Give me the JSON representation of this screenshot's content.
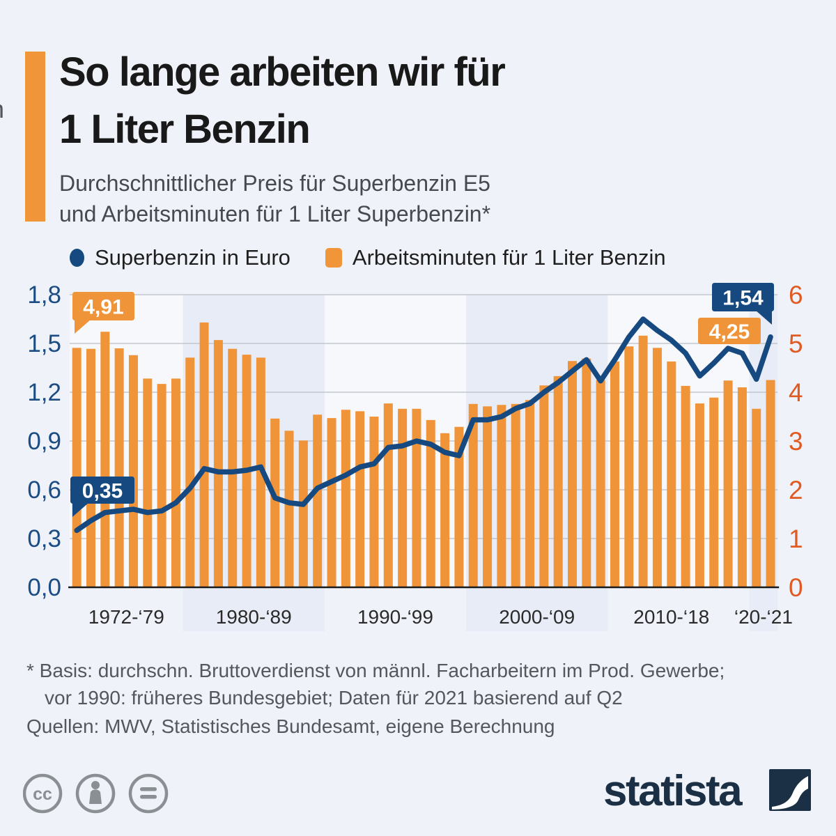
{
  "edge_artifact": "n",
  "header": {
    "title_line1": "So lange arbeiten wir für",
    "title_line2": "1 Liter Benzin",
    "subtitle_line1": "Durchschnittlicher Preis für Superbenzin E5",
    "subtitle_line2": "und Arbeitsminuten für 1 Liter Superbenzin*"
  },
  "legend": [
    {
      "label": "Superbenzin in Euro",
      "marker": "circle",
      "color": "#16497f"
    },
    {
      "label": "Arbeitsminuten für 1 Liter Benzin",
      "marker": "square",
      "color": "#f0953a"
    }
  ],
  "chart_data": {
    "type": "bar+line",
    "title": "Durchschnittlicher Preis für Superbenzin E5 und Arbeitsminuten für 1 Liter Superbenzin",
    "years": [
      1972,
      1973,
      1974,
      1975,
      1976,
      1977,
      1978,
      1979,
      1980,
      1981,
      1982,
      1983,
      1984,
      1985,
      1986,
      1987,
      1988,
      1989,
      1990,
      1991,
      1992,
      1993,
      1994,
      1995,
      1996,
      1997,
      1998,
      1999,
      2000,
      2001,
      2002,
      2003,
      2004,
      2005,
      2006,
      2007,
      2008,
      2009,
      2010,
      2011,
      2012,
      2013,
      2014,
      2015,
      2016,
      2017,
      2018,
      2019,
      2020,
      2021
    ],
    "series": [
      {
        "name": "Superbenzin in Euro",
        "type": "line",
        "axis": "left",
        "color": "#16497f",
        "values": [
          0.35,
          0.41,
          0.46,
          0.47,
          0.48,
          0.46,
          0.47,
          0.52,
          0.61,
          0.73,
          0.71,
          0.71,
          0.72,
          0.74,
          0.55,
          0.52,
          0.51,
          0.61,
          0.65,
          0.69,
          0.74,
          0.76,
          0.86,
          0.87,
          0.9,
          0.88,
          0.83,
          0.81,
          1.03,
          1.03,
          1.05,
          1.1,
          1.13,
          1.2,
          1.26,
          1.33,
          1.4,
          1.27,
          1.4,
          1.54,
          1.65,
          1.58,
          1.52,
          1.44,
          1.3,
          1.38,
          1.47,
          1.44,
          1.28,
          1.54
        ]
      },
      {
        "name": "Arbeitsminuten für 1 Liter Benzin",
        "type": "bar",
        "axis": "right",
        "color": "#f0943a",
        "values": [
          4.91,
          4.89,
          5.24,
          4.9,
          4.76,
          4.28,
          4.17,
          4.28,
          4.71,
          5.43,
          5.07,
          4.89,
          4.77,
          4.71,
          3.46,
          3.21,
          3.01,
          3.54,
          3.47,
          3.64,
          3.61,
          3.5,
          3.77,
          3.66,
          3.66,
          3.43,
          3.16,
          3.29,
          3.76,
          3.71,
          3.74,
          3.76,
          3.84,
          4.14,
          4.33,
          4.64,
          4.69,
          4.25,
          4.63,
          4.94,
          5.16,
          4.91,
          4.63,
          4.13,
          3.77,
          3.89,
          4.24,
          4.1,
          3.66,
          4.25
        ]
      }
    ],
    "left_axis": {
      "ticks": [
        "1,8",
        "1,5",
        "1,2",
        "0,9",
        "0,6",
        "0,3",
        "0,0"
      ],
      "range": [
        0,
        1.8
      ],
      "color": "#1b4c84"
    },
    "right_axis": {
      "ticks": [
        "6",
        "5",
        "4",
        "3",
        "2",
        "1",
        "0"
      ],
      "range": [
        0,
        6
      ],
      "color": "#e15a22"
    },
    "x_groups": [
      {
        "label": "1972-‘79",
        "from": 1972,
        "to": 1979,
        "band": false
      },
      {
        "label": "1980-‘89",
        "from": 1980,
        "to": 1989,
        "band": true
      },
      {
        "label": "1990-‘99",
        "from": 1990,
        "to": 1999,
        "band": false
      },
      {
        "label": "2000-‘09",
        "from": 2000,
        "to": 2009,
        "band": true
      },
      {
        "label": "2010-‘18",
        "from": 2010,
        "to": 2018,
        "band": false
      },
      {
        "label": "‘20-‘21",
        "from": 2020,
        "to": 2021,
        "band": true
      }
    ],
    "band_color": "#e8ecf6",
    "plot_bg": "#f6f8fb",
    "grid_color": "#b9bec6",
    "baseline_color": "#1a1a1a",
    "grid": true,
    "legend_position": "top",
    "callouts": [
      {
        "text": "4,91",
        "year": 1972,
        "series": "bar",
        "color": "#f0943a"
      },
      {
        "text": "0,35",
        "year": 1972,
        "series": "line",
        "color": "#16497f"
      },
      {
        "text": "1,54",
        "year": 2021,
        "series": "line",
        "color": "#16497f"
      },
      {
        "text": "4,25",
        "year": 2021,
        "series": "bar",
        "color": "#f0943a"
      }
    ]
  },
  "footnote": {
    "line1": "* Basis: durchschn. Bruttoverdienst von männl. Facharbeitern im Prod. Gewerbe;",
    "line2": "vor 1990: früheres Bundesgebiet; Daten für 2021 basierend auf Q2",
    "line3": "Quellen: MWV, Statistisches Bundesamt, eigene Berechnung"
  },
  "branding": {
    "logo_text": "statista"
  }
}
